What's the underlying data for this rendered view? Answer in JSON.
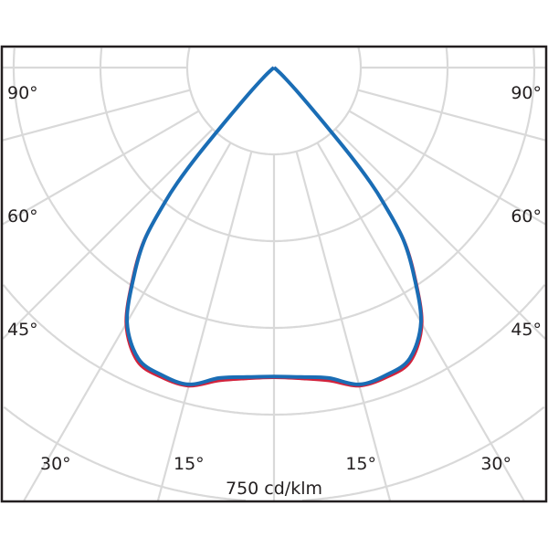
{
  "chart_data": {
    "type": "polar",
    "title": "",
    "scale_label": "750 cd/klm",
    "unit": "cd/klm",
    "radial_max": 750,
    "radial_step": 150,
    "angle_step_deg": 15,
    "grid": true,
    "angle_labels": {
      "left": [
        "90°",
        "60°",
        "45°",
        "30°",
        "15°"
      ],
      "right": [
        "90°",
        "60°",
        "45°",
        "30°",
        "15°"
      ]
    },
    "series": [
      {
        "color": "#d2233c",
        "angles": [
          0,
          5,
          10,
          15,
          20,
          25,
          30,
          34,
          37,
          39,
          40,
          41,
          42,
          44,
          47,
          50,
          90
        ],
        "values": [
          536,
          540,
          550,
          570,
          570,
          560,
          512,
          436,
          374,
          303,
          262,
          202,
          132,
          64,
          25,
          8,
          0
        ]
      },
      {
        "color": "#1a6db5",
        "angles": [
          0,
          5,
          10,
          15,
          20,
          25,
          30,
          34,
          37,
          39,
          40,
          41,
          42,
          44,
          47,
          50,
          90
        ],
        "values": [
          534,
          537,
          545,
          567,
          566,
          555,
          508,
          432,
          370,
          300,
          260,
          200,
          130,
          60,
          22,
          6,
          0
        ]
      }
    ],
    "colors": {
      "grid": "#d9d9d9",
      "frame": "#231f20"
    }
  }
}
